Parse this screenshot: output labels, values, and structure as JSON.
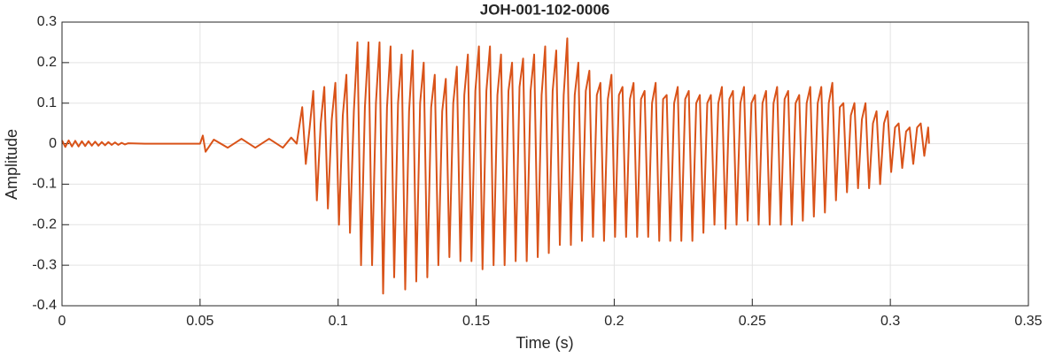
{
  "chart_data": {
    "type": "line",
    "title": "JOH-001-102-0006",
    "xlabel": "Time (s)",
    "ylabel": "Amplitude",
    "color": "#d95319",
    "grid": true,
    "xlim": [
      0,
      0.35
    ],
    "xticks": [
      0,
      0.05,
      0.1,
      0.15,
      0.2,
      0.25,
      0.3,
      0.35
    ],
    "ylim": [
      -0.4,
      0.3
    ],
    "yticks": [
      -0.4,
      -0.3,
      -0.2,
      -0.1,
      0,
      0.1,
      0.2,
      0.3
    ],
    "x": [
      0,
      0.0012,
      0.0024,
      0.0036,
      0.0048,
      0.006,
      0.0072,
      0.0084,
      0.0096,
      0.0108,
      0.012,
      0.0132,
      0.0144,
      0.0156,
      0.0168,
      0.018,
      0.0192,
      0.0204,
      0.0216,
      0.0228,
      0.024,
      0.03,
      0.04,
      0.05,
      0.051,
      0.052,
      0.055,
      0.06,
      0.065,
      0.07,
      0.075,
      0.08,
      0.083,
      0.085,
      0.087,
      0.0883,
      0.0897,
      0.091,
      0.0923,
      0.0937,
      0.095,
      0.0963,
      0.0977,
      0.099,
      0.1003,
      0.1017,
      0.103,
      0.1043,
      0.1057,
      0.107,
      0.1083,
      0.1097,
      0.111,
      0.1123,
      0.1137,
      0.115,
      0.1163,
      0.1177,
      0.119,
      0.1203,
      0.1217,
      0.123,
      0.1243,
      0.1257,
      0.127,
      0.1283,
      0.1297,
      0.131,
      0.1323,
      0.1337,
      0.135,
      0.1363,
      0.1377,
      0.139,
      0.1403,
      0.1417,
      0.143,
      0.1443,
      0.1457,
      0.147,
      0.1483,
      0.1497,
      0.151,
      0.1523,
      0.1537,
      0.155,
      0.1563,
      0.1577,
      0.159,
      0.1603,
      0.1617,
      0.163,
      0.1643,
      0.1657,
      0.167,
      0.1683,
      0.1697,
      0.171,
      0.1723,
      0.1737,
      0.175,
      0.1763,
      0.1777,
      0.179,
      0.1803,
      0.1817,
      0.183,
      0.1843,
      0.1857,
      0.187,
      0.1883,
      0.1897,
      0.191,
      0.1923,
      0.1937,
      0.195,
      0.1963,
      0.1977,
      0.199,
      0.2003,
      0.2017,
      0.203,
      0.2043,
      0.2057,
      0.207,
      0.2083,
      0.2097,
      0.211,
      0.2123,
      0.2137,
      0.215,
      0.2163,
      0.2177,
      0.219,
      0.2203,
      0.2217,
      0.223,
      0.2243,
      0.2257,
      0.227,
      0.2283,
      0.2297,
      0.231,
      0.2323,
      0.2337,
      0.235,
      0.2363,
      0.2377,
      0.239,
      0.2403,
      0.2417,
      0.243,
      0.2443,
      0.2457,
      0.247,
      0.2483,
      0.2497,
      0.251,
      0.2523,
      0.2537,
      0.255,
      0.2563,
      0.2577,
      0.259,
      0.2603,
      0.2617,
      0.263,
      0.2643,
      0.2657,
      0.267,
      0.2683,
      0.2697,
      0.271,
      0.2723,
      0.2737,
      0.275,
      0.2763,
      0.2777,
      0.279,
      0.2803,
      0.2817,
      0.283,
      0.2843,
      0.2857,
      0.287,
      0.2883,
      0.2897,
      0.291,
      0.2923,
      0.2937,
      0.295,
      0.2963,
      0.2977,
      0.299,
      0.3003,
      0.3017,
      0.303,
      0.3043,
      0.3057,
      0.307,
      0.3083,
      0.3097,
      0.311,
      0.3123,
      0.3137,
      0.314
    ],
    "values": [
      0.008,
      -0.008,
      0.008,
      -0.007,
      0.007,
      -0.007,
      0.006,
      -0.006,
      0.006,
      -0.005,
      0.005,
      -0.005,
      0.004,
      -0.004,
      0.004,
      -0.003,
      0.003,
      -0.003,
      0.002,
      -0.002,
      0.001,
      0,
      0,
      0,
      0.02,
      -0.02,
      0.01,
      -0.01,
      0.012,
      -0.01,
      0.012,
      -0.01,
      0.015,
      0,
      0.09,
      -0.05,
      0.04,
      0.13,
      -0.14,
      0.05,
      0.14,
      -0.16,
      0.06,
      0.15,
      -0.2,
      0.07,
      0.17,
      -0.22,
      0.08,
      0.25,
      -0.3,
      0.09,
      0.25,
      -0.3,
      0.1,
      0.25,
      -0.37,
      0.09,
      0.24,
      -0.33,
      0.1,
      0.22,
      -0.36,
      0.08,
      0.23,
      -0.34,
      0.1,
      0.2,
      -0.33,
      0.09,
      0.17,
      -0.3,
      0.08,
      0.16,
      -0.28,
      0.1,
      0.19,
      -0.29,
      0.12,
      0.22,
      -0.29,
      0.13,
      0.24,
      -0.31,
      0.13,
      0.24,
      -0.3,
      0.12,
      0.22,
      -0.3,
      0.13,
      0.2,
      -0.29,
      0.14,
      0.21,
      -0.29,
      0.13,
      0.22,
      -0.28,
      0.12,
      0.24,
      -0.27,
      0.13,
      0.23,
      -0.25,
      0.12,
      0.26,
      -0.25,
      0.12,
      0.2,
      -0.24,
      0.13,
      0.18,
      -0.23,
      0.12,
      0.15,
      -0.24,
      0.11,
      0.17,
      -0.23,
      0.12,
      0.14,
      -0.23,
      0.11,
      0.15,
      -0.23,
      0.11,
      0.13,
      -0.23,
      0.1,
      0.15,
      -0.24,
      0.11,
      0.12,
      -0.24,
      0.1,
      0.14,
      -0.24,
      0.11,
      0.13,
      -0.24,
      0.1,
      0.12,
      -0.22,
      0.1,
      0.12,
      -0.2,
      0.1,
      0.14,
      -0.21,
      0.11,
      0.13,
      -0.2,
      0.1,
      0.14,
      -0.19,
      0.1,
      0.12,
      -0.2,
      0.1,
      0.13,
      -0.2,
      0.1,
      0.14,
      -0.2,
      0.11,
      0.13,
      -0.2,
      0.1,
      0.12,
      -0.19,
      0.1,
      0.14,
      -0.18,
      0.1,
      0.14,
      -0.17,
      0.1,
      0.15,
      -0.14,
      0.09,
      0.1,
      -0.12,
      0.07,
      0.1,
      -0.11,
      0.06,
      0.1,
      -0.11,
      0.05,
      0.08,
      -0.1,
      0.05,
      0.08,
      -0.07,
      0.04,
      0.05,
      -0.06,
      0.03,
      0.04,
      -0.05,
      0.04,
      0.05,
      -0.03,
      0.04,
      0
    ]
  }
}
